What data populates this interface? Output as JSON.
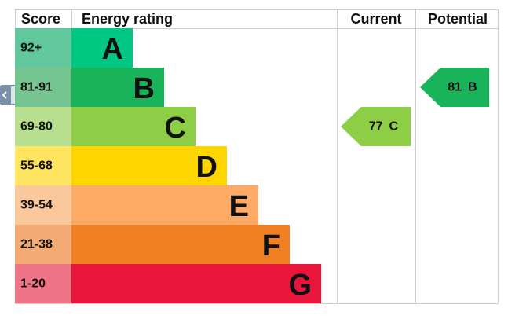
{
  "header": {
    "score": "Score",
    "rating": "Energy rating",
    "current": "Current",
    "potential": "Potential"
  },
  "rows": [
    {
      "score": "92+",
      "band": "A",
      "color": "#00c781",
      "score_color": "#63c79e"
    },
    {
      "score": "81-91",
      "band": "B",
      "color": "#19b459",
      "score_color": "#74c58f"
    },
    {
      "score": "69-80",
      "band": "C",
      "color": "#8dce46",
      "score_color": "#b8df8f"
    },
    {
      "score": "55-68",
      "band": "D",
      "color": "#ffd500",
      "score_color": "#ffe462"
    },
    {
      "score": "39-54",
      "band": "E",
      "color": "#fcaa65",
      "score_color": "#fbc89c"
    },
    {
      "score": "21-38",
      "band": "F",
      "color": "#ef8023",
      "score_color": "#f4ab73"
    },
    {
      "score": "1-20",
      "band": "G",
      "color": "#e9153b",
      "score_color": "#f07488"
    }
  ],
  "current": {
    "score": 77,
    "band": "C"
  },
  "potential": {
    "score": 81,
    "band": "B"
  }
}
